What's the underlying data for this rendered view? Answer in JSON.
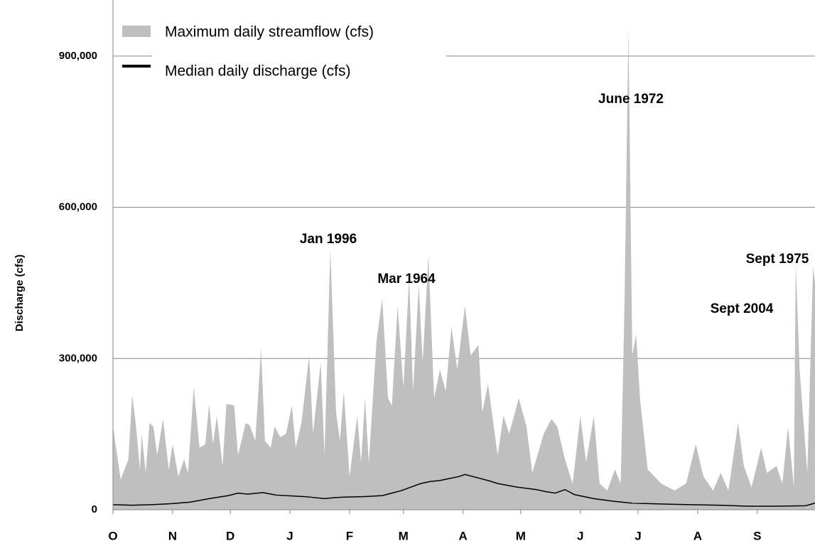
{
  "chart_data": {
    "type": "area",
    "y_label": "Discharge (cfs)",
    "xlim": [
      0,
      365
    ],
    "xticks": [
      {
        "value": 0,
        "label": "O"
      },
      {
        "value": 31,
        "label": "N"
      },
      {
        "value": 61,
        "label": "D"
      },
      {
        "value": 92,
        "label": "J"
      },
      {
        "value": 123,
        "label": "F"
      },
      {
        "value": 151,
        "label": "M"
      },
      {
        "value": 182,
        "label": "A"
      },
      {
        "value": 212,
        "label": "M"
      },
      {
        "value": 243,
        "label": "J"
      },
      {
        "value": 273,
        "label": "J"
      },
      {
        "value": 304,
        "label": "A"
      },
      {
        "value": 335,
        "label": "S"
      }
    ],
    "ylim": [
      0,
      1000000
    ],
    "yticks": [
      0,
      {
        "value": 300000,
        "label": "300,000"
      },
      {
        "value": 600000,
        "label": "600,000"
      },
      {
        "value": 900000,
        "label": "900,000"
      }
    ],
    "grid": true,
    "legend": "top-left",
    "annotations": [
      "Jan 1996",
      "Mar 1964",
      "June 1972",
      "Sept 1975",
      "Sept 2004"
    ],
    "series": [
      {
        "name": "Maximum daily streamflow (cfs)",
        "type": "area",
        "color": "#bfbfbf",
        "x": [
          0,
          4,
          8,
          10,
          12,
          14,
          15,
          17,
          19,
          21,
          23,
          26,
          29,
          31,
          34,
          37,
          39,
          42,
          45,
          48,
          50,
          52,
          54,
          57,
          59,
          63,
          65,
          69,
          71,
          74,
          77,
          79,
          82,
          84,
          87,
          90,
          93,
          95,
          98,
          102,
          104,
          108,
          110,
          113,
          116,
          118,
          120,
          123,
          127,
          129,
          131,
          133,
          137,
          140,
          143,
          145,
          148,
          151,
          154,
          156,
          159,
          161,
          164,
          167,
          170,
          173,
          176,
          179,
          183,
          186,
          190,
          192,
          195,
          200,
          203,
          206,
          211,
          215,
          218,
          224,
          228,
          231,
          235,
          239,
          243,
          246,
          250,
          253,
          257,
          261,
          264,
          266,
          268,
          270,
          272,
          274,
          278,
          285,
          292,
          298,
          303,
          307,
          312,
          316,
          320,
          325,
          328,
          332,
          337,
          340,
          345,
          348,
          351,
          354,
          355,
          357,
          361,
          364,
          365
        ],
        "values": [
          165000,
          60000,
          100000,
          228000,
          165000,
          80000,
          150000,
          73000,
          172000,
          165000,
          108000,
          180000,
          80000,
          130000,
          66000,
          100000,
          73000,
          243000,
          123000,
          130000,
          210000,
          130000,
          186000,
          87000,
          210000,
          207000,
          108000,
          172000,
          168000,
          137000,
          320000,
          137000,
          123000,
          165000,
          144000,
          151000,
          207000,
          123000,
          172000,
          306000,
          151000,
          292000,
          108000,
          517000,
          193000,
          137000,
          235000,
          66000,
          186000,
          94000,
          221000,
          94000,
          334000,
          419000,
          221000,
          207000,
          405000,
          243000,
          461000,
          235000,
          447000,
          292000,
          503000,
          221000,
          278000,
          235000,
          362000,
          278000,
          405000,
          306000,
          327000,
          193000,
          250000,
          108000,
          186000,
          151000,
          221000,
          165000,
          73000,
          151000,
          180000,
          165000,
          100000,
          52000,
          186000,
          94000,
          186000,
          52000,
          38000,
          80000,
          52000,
          419000,
          955000,
          306000,
          348000,
          221000,
          80000,
          52000,
          38000,
          52000,
          130000,
          66000,
          38000,
          73000,
          38000,
          172000,
          87000,
          45000,
          123000,
          73000,
          87000,
          52000,
          165000,
          45000,
          489000,
          278000,
          73000,
          482000,
          450000
        ]
      },
      {
        "name": "Median daily discharge (cfs)",
        "type": "line",
        "color": "#000000",
        "x": [
          0,
          10,
          20,
          30,
          40,
          50,
          60,
          65,
          70,
          78,
          85,
          95,
          100,
          110,
          115,
          120,
          130,
          140,
          145,
          150,
          155,
          160,
          165,
          170,
          175,
          180,
          183,
          188,
          195,
          200,
          210,
          220,
          225,
          230,
          235,
          240,
          250,
          260,
          270,
          280,
          290,
          300,
          315,
          330,
          345,
          360,
          365
        ],
        "values": [
          10000,
          9000,
          10000,
          12000,
          15000,
          22000,
          28000,
          33000,
          31000,
          34000,
          29000,
          27000,
          26000,
          22000,
          24000,
          25000,
          26000,
          28000,
          33000,
          38000,
          45000,
          52000,
          56000,
          58000,
          62000,
          66000,
          70000,
          65000,
          58000,
          52000,
          45000,
          40000,
          36000,
          33000,
          40000,
          30000,
          22000,
          17000,
          13000,
          12000,
          11000,
          10000,
          9000,
          7000,
          7000,
          8000,
          13000
        ]
      }
    ]
  }
}
